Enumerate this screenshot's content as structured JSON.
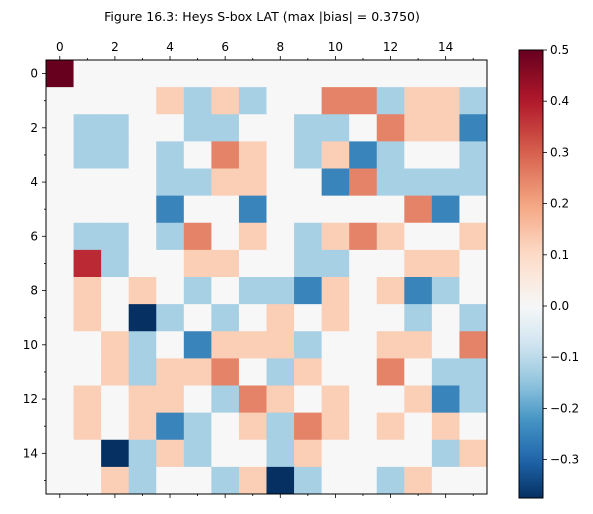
{
  "chart_data": {
    "type": "heatmap",
    "title": "Figure 16.3: Heys S-box LAT (max |bias| = 0.3750)",
    "x_tick_labels": [
      "0",
      "2",
      "4",
      "6",
      "8",
      "10",
      "12",
      "14"
    ],
    "y_tick_labels": [
      "0",
      "2",
      "4",
      "6",
      "8",
      "10",
      "12",
      "14"
    ],
    "x_range": [
      0,
      15
    ],
    "y_range": [
      0,
      15
    ],
    "y_axis_inverted": true,
    "x_ticks_position": "top",
    "colormap": "RdBu_r",
    "vmin": -0.375,
    "vmax": 0.5,
    "colorbar_ticks": [
      0.5,
      0.4,
      0.3,
      0.2,
      0.1,
      0.0,
      -0.1,
      -0.2,
      -0.3
    ],
    "colorbar_tick_labels": [
      "0.5",
      "0.4",
      "0.3",
      "0.2",
      "0.1",
      "0.0",
      "−0.1",
      "−0.2",
      "−0.3"
    ],
    "values": [
      [
        0.5,
        0,
        0,
        0,
        0,
        0,
        0,
        0,
        0,
        0,
        0,
        0,
        0,
        0,
        0,
        0
      ],
      [
        0,
        0,
        0,
        0,
        0.125,
        -0.125,
        0.125,
        -0.125,
        0,
        0,
        0.25,
        0.25,
        -0.125,
        0.125,
        0.125,
        -0.125
      ],
      [
        0,
        -0.125,
        -0.125,
        0,
        0,
        -0.125,
        -0.125,
        0,
        0,
        -0.125,
        -0.125,
        0,
        0.25,
        0.125,
        0.125,
        -0.25
      ],
      [
        0,
        -0.125,
        -0.125,
        0,
        -0.125,
        0,
        0.25,
        0.125,
        0,
        -0.125,
        0.125,
        -0.25,
        -0.125,
        0,
        0,
        -0.125
      ],
      [
        0,
        0,
        0,
        0,
        -0.125,
        -0.125,
        0.125,
        0.125,
        0,
        0,
        -0.25,
        0.25,
        -0.125,
        -0.125,
        -0.125,
        -0.125
      ],
      [
        0,
        0,
        0,
        0,
        -0.25,
        0,
        0,
        -0.25,
        0,
        0,
        0,
        0,
        0,
        0.25,
        -0.25,
        0
      ],
      [
        0,
        -0.125,
        -0.125,
        0,
        -0.125,
        0.25,
        0,
        0.125,
        0,
        -0.125,
        0.125,
        0.25,
        0.125,
        0,
        0,
        0.125
      ],
      [
        0,
        0.375,
        -0.125,
        0,
        0,
        0.125,
        0.125,
        0,
        0,
        -0.125,
        -0.125,
        0,
        0,
        0.125,
        0.125,
        0
      ],
      [
        0,
        0.125,
        0,
        0.125,
        0,
        -0.125,
        0,
        -0.125,
        -0.125,
        -0.25,
        0.125,
        0,
        0.125,
        -0.25,
        -0.125,
        0
      ],
      [
        0,
        0.125,
        0,
        -0.375,
        -0.125,
        0,
        -0.125,
        0,
        0.125,
        0,
        0.125,
        0,
        0,
        -0.125,
        0,
        -0.125
      ],
      [
        0,
        0,
        0.125,
        -0.125,
        0,
        -0.25,
        0.125,
        0.125,
        0.125,
        -0.125,
        0,
        0,
        0.125,
        0.125,
        0,
        0.25
      ],
      [
        0,
        0,
        0.125,
        -0.125,
        0.125,
        0.125,
        0.25,
        0,
        -0.125,
        0.125,
        0,
        0,
        0.25,
        0,
        -0.125,
        -0.125
      ],
      [
        0,
        0.125,
        0,
        0.125,
        0.125,
        0,
        -0.125,
        0.25,
        0.125,
        0,
        0.125,
        0,
        0,
        0.125,
        -0.25,
        -0.125
      ],
      [
        0,
        0.125,
        0,
        0.125,
        -0.25,
        -0.125,
        0,
        0.125,
        -0.125,
        0.25,
        0.125,
        0,
        0.125,
        0,
        0.125,
        0
      ],
      [
        0,
        0,
        -0.375,
        -0.125,
        0.125,
        -0.125,
        0,
        0,
        -0.125,
        0.125,
        0,
        0,
        0,
        0,
        -0.125,
        0.125
      ],
      [
        0,
        0,
        0.125,
        -0.125,
        0,
        0,
        -0.125,
        0.125,
        -0.375,
        -0.125,
        0,
        0,
        -0.125,
        0.125,
        0,
        0
      ]
    ]
  }
}
